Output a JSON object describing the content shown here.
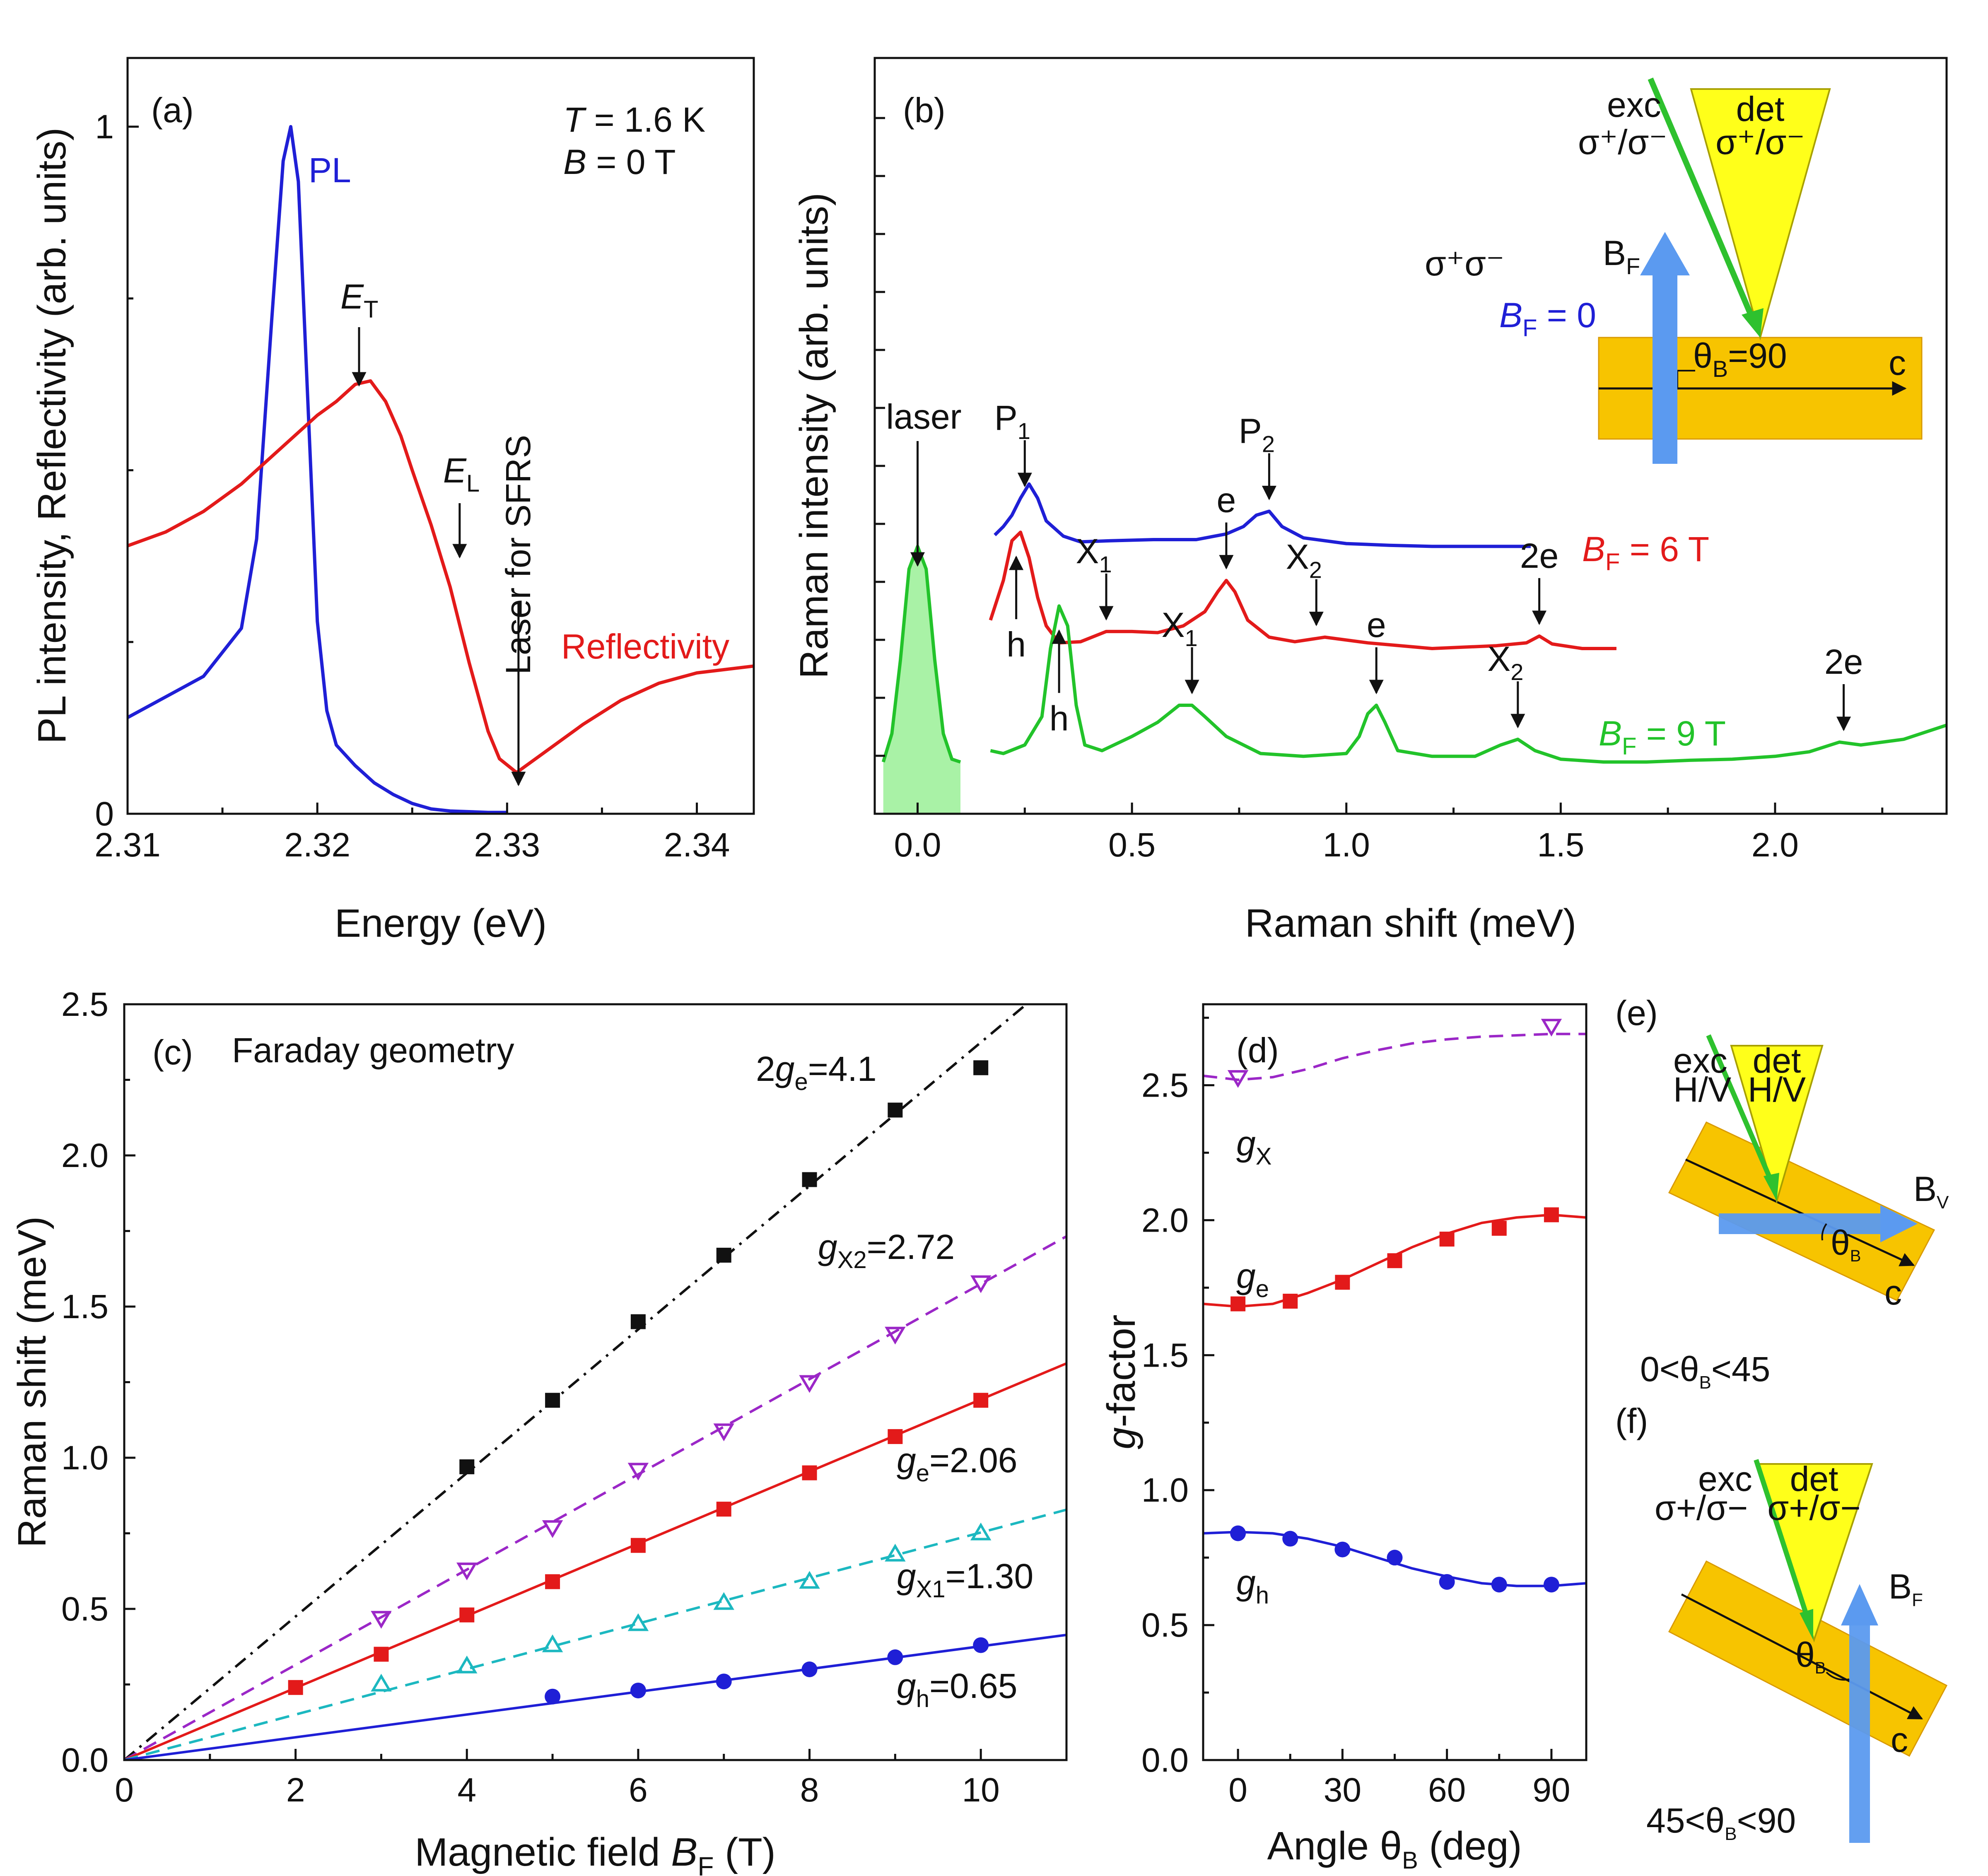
{
  "chart_data": [
    {
      "id": "a",
      "type": "line",
      "panel_label": "(a)",
      "xlabel": "Energy (eV)",
      "ylabel": "PL intensity, Reflectivity (arb. units)",
      "xlim": [
        2.31,
        2.343
      ],
      "ylim": [
        0,
        1.1
      ],
      "xticks": [
        "2.31",
        "2.32",
        "2.33",
        "2.34"
      ],
      "yticks": [
        "0",
        "1"
      ],
      "conditions": [
        "T = 1.6 K",
        "B = 0 T"
      ],
      "series": [
        {
          "name": "PL",
          "color": "#1f1fd6",
          "x": [
            2.31,
            2.312,
            2.314,
            2.316,
            2.3168,
            2.3176,
            2.3182,
            2.3186,
            2.319,
            2.3195,
            2.32,
            2.3205,
            2.321,
            2.322,
            2.323,
            2.324,
            2.325,
            2.326,
            2.327,
            2.328,
            2.329,
            2.33
          ],
          "y": [
            0.14,
            0.17,
            0.2,
            0.27,
            0.4,
            0.72,
            0.95,
            1.0,
            0.92,
            0.6,
            0.28,
            0.15,
            0.1,
            0.07,
            0.045,
            0.028,
            0.015,
            0.007,
            0.004,
            0.003,
            0.002,
            0.002
          ]
        },
        {
          "name": "Reflectivity",
          "color": "#e31a1a",
          "x": [
            2.31,
            2.312,
            2.314,
            2.316,
            2.318,
            2.32,
            2.321,
            2.322,
            2.3228,
            2.3236,
            2.3244,
            2.325,
            2.326,
            2.327,
            2.328,
            2.329,
            2.3296,
            2.3305,
            2.332,
            2.334,
            2.336,
            2.338,
            2.34,
            2.343
          ],
          "y": [
            0.39,
            0.41,
            0.44,
            0.48,
            0.53,
            0.58,
            0.6,
            0.625,
            0.63,
            0.6,
            0.55,
            0.5,
            0.42,
            0.33,
            0.22,
            0.12,
            0.08,
            0.06,
            0.09,
            0.13,
            0.165,
            0.19,
            0.205,
            0.215
          ]
        }
      ],
      "labels": {
        "pl": "PL",
        "refl": "Reflectivity",
        "et_sym": "E",
        "et_sub": "T",
        "el_sym": "E",
        "el_sub": "L",
        "laser": "Laser for SFRS"
      },
      "markers": {
        "ET": 2.3222,
        "EL": 2.3275,
        "laser": 2.3306
      }
    },
    {
      "id": "b",
      "type": "line",
      "panel_label": "(b)",
      "xlabel": "Raman shift (meV)",
      "ylabel": "Raman intensity (arb. units)",
      "xlim": [
        -0.1,
        2.4
      ],
      "xticks": [
        "0.0",
        "0.5",
        "1.0",
        "1.5",
        "2.0"
      ],
      "polarization": "σ⁺σ⁻",
      "series": [
        {
          "name": "B_F = 0",
          "label_main": "B",
          "label_sub": "F",
          "label_tail": " = 0",
          "color": "#1f1fd6",
          "offset": 3.8,
          "x": [
            0.18,
            0.2,
            0.22,
            0.24,
            0.26,
            0.28,
            0.3,
            0.34,
            0.38,
            0.45,
            0.55,
            0.65,
            0.72,
            0.76,
            0.79,
            0.82,
            0.85,
            0.9,
            1.0,
            1.1,
            1.2,
            1.3,
            1.43
          ],
          "y": [
            0.2,
            0.35,
            0.55,
            0.85,
            1.1,
            0.85,
            0.45,
            0.18,
            0.08,
            0.1,
            0.12,
            0.12,
            0.22,
            0.35,
            0.55,
            0.62,
            0.35,
            0.15,
            0.05,
            0.02,
            0.0,
            0.0,
            0.0
          ]
        },
        {
          "name": "B_F = 6 T",
          "label_main": "B",
          "label_sub": "F",
          "label_tail": " = 6 T",
          "color": "#e31a1a",
          "offset": 2.0,
          "x": [
            0.17,
            0.2,
            0.22,
            0.24,
            0.26,
            0.28,
            0.3,
            0.33,
            0.38,
            0.44,
            0.5,
            0.56,
            0.62,
            0.67,
            0.7,
            0.72,
            0.74,
            0.77,
            0.82,
            0.88,
            0.95,
            1.05,
            1.2,
            1.35,
            1.42,
            1.45,
            1.48,
            1.55,
            1.63
          ],
          "y": [
            0.5,
            1.2,
            1.9,
            2.05,
            1.6,
            0.9,
            0.4,
            0.1,
            0.12,
            0.3,
            0.3,
            0.28,
            0.4,
            0.65,
            1.0,
            1.2,
            1.0,
            0.5,
            0.2,
            0.12,
            0.2,
            0.1,
            0.0,
            0.05,
            0.1,
            0.22,
            0.08,
            0.0,
            0.0
          ]
        },
        {
          "name": "B_F = 9 T",
          "label_main": "B",
          "label_sub": "F",
          "label_tail": " = 9 T",
          "color": "#22c32a",
          "offset": 0.0,
          "x": [
            0.17,
            0.2,
            0.25,
            0.29,
            0.31,
            0.33,
            0.35,
            0.37,
            0.39,
            0.43,
            0.5,
            0.56,
            0.61,
            0.64,
            0.67,
            0.72,
            0.8,
            0.9,
            1.0,
            1.03,
            1.05,
            1.07,
            1.09,
            1.12,
            1.2,
            1.3,
            1.36,
            1.4,
            1.44,
            1.5,
            1.6,
            1.7,
            1.8,
            1.9,
            2.0,
            2.08,
            2.15,
            2.2,
            2.3,
            2.4
          ],
          "y": [
            0.2,
            0.15,
            0.3,
            0.8,
            2.0,
            2.75,
            2.4,
            1.0,
            0.3,
            0.2,
            0.45,
            0.7,
            1.0,
            1.0,
            0.8,
            0.45,
            0.15,
            0.1,
            0.15,
            0.45,
            0.85,
            1.0,
            0.7,
            0.2,
            0.1,
            0.1,
            0.3,
            0.4,
            0.2,
            0.05,
            0.0,
            0.0,
            0.03,
            0.05,
            0.1,
            0.18,
            0.35,
            0.3,
            0.4,
            0.65
          ]
        },
        {
          "name": "laser",
          "color": "#22c32a",
          "fill": "#a9f2a6",
          "offset": 0.0,
          "x": [
            -0.08,
            -0.06,
            -0.04,
            -0.02,
            0.0,
            0.02,
            0.04,
            0.06,
            0.08,
            0.1
          ],
          "y": [
            0.0,
            0.5,
            1.8,
            3.4,
            3.8,
            3.4,
            1.8,
            0.5,
            0.05,
            0.0
          ]
        }
      ],
      "peak_labels": [
        {
          "text": "P",
          "sub": "1",
          "x": 0.25,
          "row": "b0"
        },
        {
          "text": "P",
          "sub": "2",
          "x": 0.82,
          "row": "b0"
        },
        {
          "text": "h",
          "sub": "",
          "x": 0.23,
          "row": "b6",
          "below": true
        },
        {
          "text": "X",
          "sub": "1",
          "x": 0.44,
          "row": "b6"
        },
        {
          "text": "e",
          "sub": "",
          "x": 0.72,
          "row": "b6"
        },
        {
          "text": "X",
          "sub": "2",
          "x": 0.93,
          "row": "b6"
        },
        {
          "text": "2e",
          "sub": "",
          "x": 1.45,
          "row": "b6"
        },
        {
          "text": "h",
          "sub": "",
          "x": 0.33,
          "row": "b9",
          "below": true
        },
        {
          "text": "X",
          "sub": "1",
          "x": 0.64,
          "row": "b9"
        },
        {
          "text": "e",
          "sub": "",
          "x": 1.07,
          "row": "b9"
        },
        {
          "text": "X",
          "sub": "2",
          "x": 1.4,
          "row": "b9"
        },
        {
          "text": "2e",
          "sub": "",
          "x": 2.16,
          "row": "b9"
        },
        {
          "text": "laser",
          "sub": "",
          "x": 0.0,
          "row": "laser"
        }
      ],
      "inset": {
        "exc": "exc",
        "exc_pol": "σ⁺/σ⁻",
        "det": "det",
        "det_pol": "σ⁺/σ⁻",
        "field": "B",
        "field_sub": "F",
        "angle": "θ",
        "angle_sub": "B",
        "angle_val": "=90",
        "axis": "c"
      }
    },
    {
      "id": "c",
      "type": "scatter",
      "panel_label": "(c)",
      "title": "Faraday geometry",
      "xlabel_main": "Magnetic field ",
      "xlabel_sym": "B",
      "xlabel_sub": "F",
      "xlabel_tail": " (T)",
      "ylabel": "Raman shift (meV)",
      "xlim": [
        0,
        11
      ],
      "ylim": [
        0,
        2.5
      ],
      "xticks": [
        "0",
        "2",
        "4",
        "6",
        "8",
        "10"
      ],
      "yticks": [
        "0.0",
        "0.5",
        "1.0",
        "1.5",
        "2.0",
        "2.5"
      ],
      "series": [
        {
          "name": "2ge",
          "label_pre": "2",
          "label_sym": "g",
          "label_sub": "e",
          "label_val": "=4.1",
          "g": 4.1,
          "color": "#111111",
          "marker": "square",
          "line": "dashdot",
          "x": [
            4,
            5,
            6,
            7,
            8,
            9,
            10
          ],
          "y": [
            0.97,
            1.19,
            1.45,
            1.67,
            1.92,
            2.15,
            2.29
          ]
        },
        {
          "name": "gX2",
          "label_pre": "",
          "label_sym": "g",
          "label_sub": "X2",
          "label_val": "=2.72",
          "g": 2.72,
          "color": "#9b27c7",
          "marker": "triangle-down",
          "line": "dashed",
          "x": [
            3,
            4,
            5,
            6,
            7,
            8,
            9,
            10
          ],
          "y": [
            0.47,
            0.63,
            0.77,
            0.96,
            1.09,
            1.25,
            1.41,
            1.58
          ]
        },
        {
          "name": "ge",
          "label_pre": "",
          "label_sym": "g",
          "label_sub": "e",
          "label_val": "=2.06",
          "g": 2.06,
          "color": "#e31a1a",
          "marker": "square",
          "line": "solid",
          "x": [
            2,
            3,
            4,
            5,
            6,
            7,
            8,
            9,
            10
          ],
          "y": [
            0.24,
            0.35,
            0.48,
            0.59,
            0.71,
            0.83,
            0.95,
            1.07,
            1.19
          ]
        },
        {
          "name": "gX1",
          "label_pre": "",
          "label_sym": "g",
          "label_sub": "X1",
          "label_val": "=1.30",
          "g": 1.3,
          "color": "#1cb8c0",
          "marker": "triangle-up",
          "line": "dashed",
          "x": [
            3,
            4,
            5,
            6,
            7,
            8,
            9,
            10
          ],
          "y": [
            0.25,
            0.31,
            0.38,
            0.45,
            0.52,
            0.59,
            0.68,
            0.75
          ]
        },
        {
          "name": "gh",
          "label_pre": "",
          "label_sym": "g",
          "label_sub": "h",
          "label_val": "=0.65",
          "g": 0.65,
          "color": "#1f1fd6",
          "marker": "circle",
          "line": "solid",
          "x": [
            5,
            6,
            7,
            8,
            9,
            10
          ],
          "y": [
            0.21,
            0.23,
            0.26,
            0.3,
            0.34,
            0.38
          ]
        }
      ]
    },
    {
      "id": "d",
      "type": "scatter",
      "panel_label": "(d)",
      "xlabel_main": "Angle θ",
      "xlabel_sub": "B",
      "xlabel_tail": " (deg)",
      "ylabel_sym": "g",
      "ylabel_tail": "-factor",
      "xlim": [
        -10,
        100
      ],
      "ylim": [
        0,
        2.8
      ],
      "xticks": [
        "0",
        "30",
        "60",
        "90"
      ],
      "yticks": [
        "0.0",
        "0.5",
        "1.0",
        "1.5",
        "2.0",
        "2.5"
      ],
      "series": [
        {
          "name": "gX",
          "label_sym": "g",
          "label_sub": "X",
          "color": "#9b27c7",
          "marker": "triangle-down",
          "line": "dashed",
          "x": [
            0,
            90
          ],
          "y": [
            2.53,
            2.72
          ],
          "fit_x": [
            -10,
            0,
            10,
            20,
            30,
            40,
            50,
            60,
            70,
            80,
            90,
            100
          ],
          "fit_y": [
            2.535,
            2.52,
            2.53,
            2.56,
            2.6,
            2.63,
            2.655,
            2.67,
            2.68,
            2.685,
            2.69,
            2.69
          ]
        },
        {
          "name": "ge",
          "label_sym": "g",
          "label_sub": "e",
          "color": "#e31a1a",
          "marker": "square",
          "line": "solid",
          "x": [
            0,
            15,
            30,
            45,
            60,
            75,
            90
          ],
          "y": [
            1.69,
            1.7,
            1.77,
            1.85,
            1.93,
            1.97,
            2.02
          ],
          "fit_x": [
            -10,
            0,
            10,
            20,
            30,
            40,
            50,
            60,
            70,
            80,
            90,
            100
          ],
          "fit_y": [
            1.69,
            1.68,
            1.69,
            1.73,
            1.78,
            1.84,
            1.9,
            1.95,
            1.99,
            2.01,
            2.02,
            2.01
          ]
        },
        {
          "name": "gh",
          "label_sym": "g",
          "label_sub": "h",
          "color": "#1f1fd6",
          "marker": "circle",
          "line": "solid",
          "x": [
            0,
            15,
            30,
            45,
            60,
            75,
            90
          ],
          "y": [
            0.84,
            0.82,
            0.78,
            0.75,
            0.66,
            0.65,
            0.65
          ],
          "fit_x": [
            -10,
            0,
            10,
            20,
            30,
            40,
            50,
            60,
            70,
            80,
            90,
            100
          ],
          "fit_y": [
            0.84,
            0.845,
            0.84,
            0.82,
            0.79,
            0.75,
            0.71,
            0.68,
            0.655,
            0.645,
            0.645,
            0.655
          ]
        }
      ]
    }
  ],
  "schematics": {
    "e": {
      "label": "(e)",
      "exc": "exc",
      "exc_pol": "H/V",
      "det": "det",
      "det_pol": "H/V",
      "field": "B",
      "field_sub": "V",
      "angle": "θ",
      "angle_sub": "B",
      "axis": "c",
      "range_pre": "0<θ",
      "range_sub": "B",
      "range_post": "<45"
    },
    "f": {
      "label": "(f)",
      "exc": "exc",
      "exc_pol": "σ+/σ−",
      "det": "det",
      "det_pol": "σ+/σ−",
      "field": "B",
      "field_sub": "F",
      "angle": "θ",
      "angle_sub": "B",
      "axis": "c",
      "range_pre": "45<θ",
      "range_sub": "B",
      "range_post": "<90"
    }
  },
  "colors": {
    "crystal": "#f7c400",
    "crystal_edge": "#d99a00",
    "beam_det": "#ffff1a",
    "beam_exc": "#2ec12e",
    "field_arrow": "#5b9af0"
  }
}
